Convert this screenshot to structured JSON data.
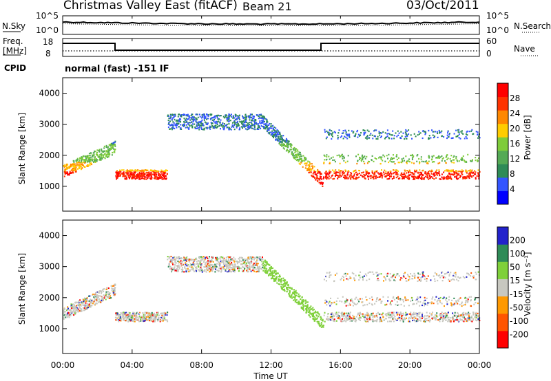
{
  "header": {
    "station": "Christmas Valley East (fitACF)",
    "beam": "Beam 21",
    "date": "03/Oct/2011"
  },
  "panels": {
    "noise": {
      "left_label": "N.Sky",
      "left_ticks": [
        "10^5",
        "10^0"
      ],
      "right_ticks": [
        "10^5",
        "10^0"
      ],
      "right_label": "N.Search"
    },
    "freq": {
      "left_label_1": "Freq.",
      "left_label_2": "[MHz]",
      "left_ticks": [
        "18",
        "8"
      ],
      "right_ticks": [
        "60",
        "0"
      ],
      "right_label": "Nave"
    },
    "cpid": {
      "label": "CPID",
      "mode_text": "normal (fast) -151 IF"
    }
  },
  "colors": {
    "power": [
      "#0000ff",
      "#3355ff",
      "#2e8b57",
      "#55aa55",
      "#7fcc3a",
      "#ffcc00",
      "#ff8800",
      "#ff3300",
      "#ff0000"
    ],
    "velocity": [
      "#2222cc",
      "#2e8b57",
      "#7fd03a",
      "#c8c8c0",
      "#ff9900",
      "#ff5500",
      "#ff0000"
    ]
  },
  "chart_data": [
    {
      "type": "heatmap",
      "quantity": "power",
      "ylabel": "Slant Range [km]",
      "xlabel": "Time UT",
      "y_ticks": [
        1000,
        2000,
        3000,
        4000
      ],
      "ylim": [
        200,
        4500
      ],
      "x_ticks": [
        "00:00",
        "04:00",
        "08:00",
        "12:00",
        "16:00",
        "20:00",
        "00:00"
      ],
      "xlim_hours": [
        0,
        24
      ],
      "colorbar_label": "Power [dB]",
      "colorbar_ticks": [
        4,
        8,
        12,
        16,
        20,
        24,
        28
      ]
    },
    {
      "type": "heatmap",
      "quantity": "velocity",
      "ylabel": "Slant Range [km]",
      "xlabel": "Time UT",
      "y_ticks": [
        1000,
        2000,
        3000,
        4000
      ],
      "ylim": [
        200,
        4500
      ],
      "x_ticks": [
        "00:00",
        "04:00",
        "08:00",
        "12:00",
        "16:00",
        "20:00",
        "00:00"
      ],
      "xlim_hours": [
        0,
        24
      ],
      "colorbar_label": "Velocity [m s⁻¹]",
      "colorbar_ticks": [
        200,
        100,
        50,
        15,
        -15,
        -50,
        -100,
        -200
      ]
    }
  ],
  "axis": {
    "xlabel": "Time UT"
  }
}
